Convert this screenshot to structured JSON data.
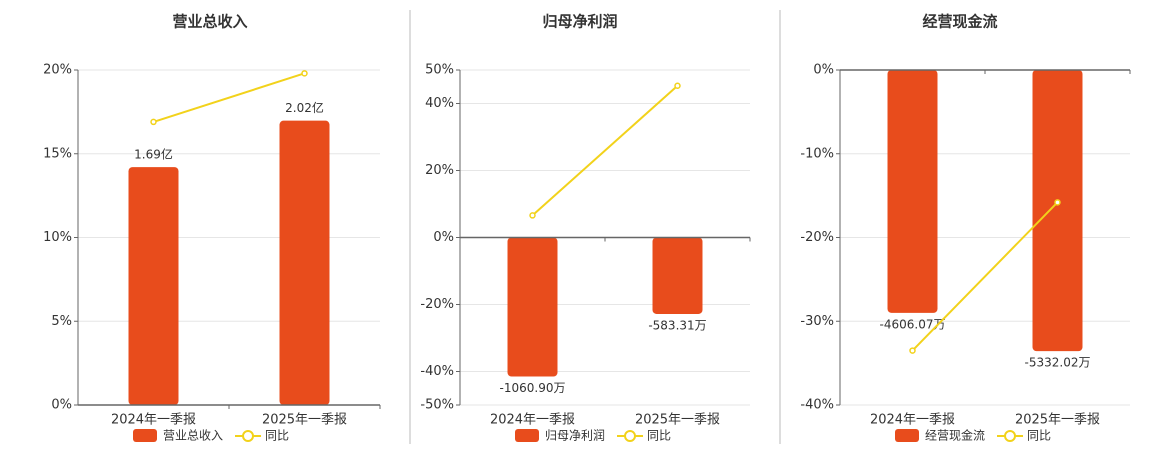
{
  "chart_data": [
    {
      "type": "combo",
      "title": "营业总收入",
      "categories": [
        "2024年一季报",
        "2025年一季报"
      ],
      "series": [
        {
          "name": "营业总收入",
          "type": "bar",
          "axis": "y2",
          "color": "#e84c1c",
          "values": [
            1.69,
            2.02
          ],
          "value_labels": [
            "1.69亿",
            "2.02亿"
          ]
        },
        {
          "name": "同比",
          "type": "line",
          "color": "#f2d21b",
          "values": [
            16.9,
            19.8
          ]
        }
      ],
      "ylim": [
        0,
        20
      ],
      "yticks": [
        {
          "value": 0,
          "label": "0%"
        },
        {
          "value": 5,
          "label": "5%"
        },
        {
          "value": 10,
          "label": "10%"
        },
        {
          "value": 15,
          "label": "15%"
        },
        {
          "value": 20,
          "label": "20%"
        }
      ],
      "y2lim": [
        0,
        2.38
      ],
      "grid": true
    },
    {
      "type": "combo",
      "title": "归母净利润",
      "categories": [
        "2024年一季报",
        "2025年一季报"
      ],
      "series": [
        {
          "name": "归母净利润",
          "type": "bar",
          "axis": "y2",
          "color": "#e84c1c",
          "values": [
            -1060.9,
            -583.31
          ],
          "value_labels": [
            "-1060.90万",
            "-583.31万"
          ]
        },
        {
          "name": "同比",
          "type": "line",
          "color": "#f2d21b",
          "values": [
            6.6,
            45.3
          ]
        }
      ],
      "ylim": [
        -50,
        50
      ],
      "yticks": [
        {
          "value": -50,
          "label": "-50%"
        },
        {
          "value": -40,
          "label": "-40%"
        },
        {
          "value": -20,
          "label": "-20%"
        },
        {
          "value": 0,
          "label": "0%"
        },
        {
          "value": 20,
          "label": "20%"
        },
        {
          "value": 40,
          "label": "40%"
        },
        {
          "value": 50,
          "label": "50%"
        }
      ],
      "y2lim": [
        -1278,
        1278
      ],
      "grid": true
    },
    {
      "type": "combo",
      "title": "经营现金流",
      "categories": [
        "2024年一季报",
        "2025年一季报"
      ],
      "series": [
        {
          "name": "经营现金流",
          "type": "bar",
          "axis": "y2",
          "color": "#e84c1c",
          "values": [
            -4606.07,
            -5332.02
          ],
          "value_labels": [
            "-4606.07万",
            "-5332.02万"
          ]
        },
        {
          "name": "同比",
          "type": "line",
          "color": "#f2d21b",
          "values": [
            -33.5,
            -15.8
          ]
        }
      ],
      "ylim": [
        -40,
        0
      ],
      "yticks": [
        {
          "value": -40,
          "label": "-40%"
        },
        {
          "value": -30,
          "label": "-30%"
        },
        {
          "value": -20,
          "label": "-20%"
        },
        {
          "value": -10,
          "label": "-10%"
        },
        {
          "value": 0,
          "label": "0%"
        }
      ],
      "y2lim": [
        -6353,
        0
      ],
      "grid": true
    }
  ]
}
